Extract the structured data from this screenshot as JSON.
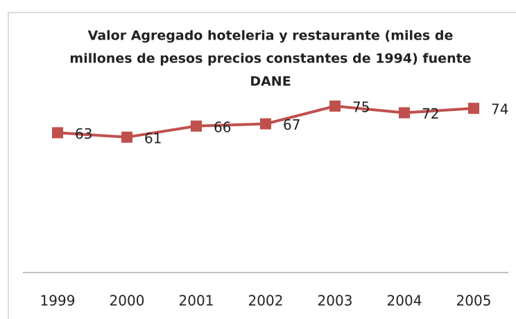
{
  "chart_data": {
    "type": "line",
    "title": [
      "Valor Agregado hoteleria y restaurante (miles de",
      "millones de pesos precios constantes de 1994)  fuente",
      "DANE"
    ],
    "categories": [
      "1999",
      "2000",
      "2001",
      "2002",
      "2003",
      "2004",
      "2005"
    ],
    "series": [
      {
        "name": "Valor Agregado",
        "color": "#c0504d",
        "values": [
          63,
          61,
          66,
          67,
          75,
          72,
          74
        ]
      }
    ],
    "ylim": [
      0,
      80
    ]
  }
}
